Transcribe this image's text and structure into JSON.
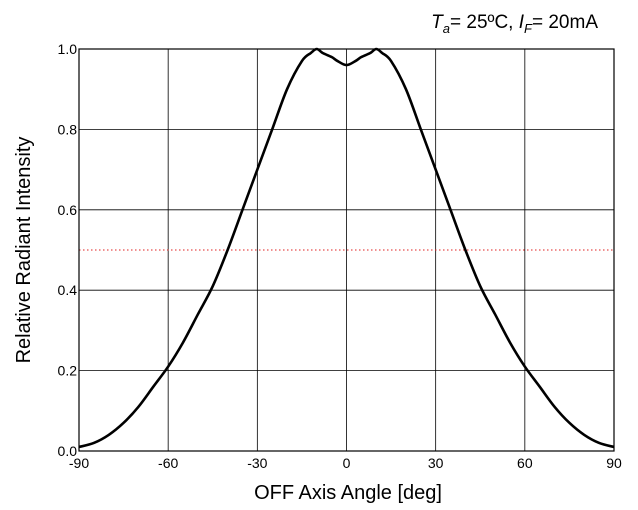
{
  "chart_data": {
    "type": "line",
    "title": "",
    "conditions": {
      "ta_symbol": "T",
      "ta_sub": "a",
      "ta_value": "= 25ºC, ",
      "if_symbol": "I",
      "if_sub": "F",
      "if_value": "= 20mA"
    },
    "xlabel": "OFF Axis Angle [deg]",
    "ylabel": "Relative Radiant Intensity",
    "xlim": [
      -90,
      90
    ],
    "ylim": [
      0.0,
      1.0
    ],
    "xticks": [
      -90,
      -60,
      -30,
      0,
      30,
      60,
      90
    ],
    "xtick_labels": [
      "-90",
      "-60",
      "-30",
      "0",
      "30",
      "60",
      "90"
    ],
    "yticks": [
      0.0,
      0.2,
      0.4,
      0.6,
      0.8,
      1.0
    ],
    "ytick_labels": [
      "0.0",
      "0.2",
      "0.4",
      "0.6",
      "0.8",
      "1.0"
    ],
    "grid": true,
    "reference_line": {
      "y": 0.5,
      "style": "dotted",
      "color": "#e02020"
    },
    "line_color": "#000000",
    "series": [
      {
        "x": [
          -90,
          -85,
          -80,
          -75,
          -70,
          -65,
          -60,
          -55,
          -50,
          -45,
          -40,
          -35,
          -30,
          -25,
          -20,
          -15,
          -12,
          -10,
          -8,
          -5,
          -3,
          0,
          3,
          5,
          8,
          10,
          12,
          15,
          20,
          25,
          30,
          35,
          40,
          45,
          50,
          55,
          60,
          65,
          70,
          75,
          80,
          85,
          90
        ],
        "values": [
          0.01,
          0.02,
          0.04,
          0.07,
          0.11,
          0.16,
          0.21,
          0.27,
          0.34,
          0.41,
          0.5,
          0.6,
          0.7,
          0.8,
          0.9,
          0.97,
          0.99,
          1.0,
          0.99,
          0.98,
          0.97,
          0.96,
          0.97,
          0.98,
          0.99,
          1.0,
          0.99,
          0.97,
          0.9,
          0.8,
          0.7,
          0.6,
          0.5,
          0.41,
          0.34,
          0.27,
          0.21,
          0.16,
          0.11,
          0.07,
          0.04,
          0.02,
          0.01
        ]
      }
    ]
  }
}
